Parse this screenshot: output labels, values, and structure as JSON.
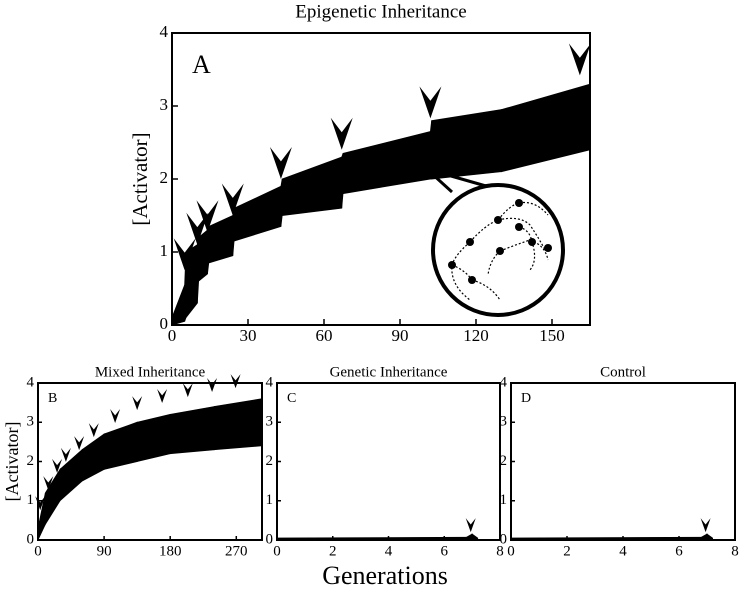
{
  "chart_data": [
    {
      "type": "range",
      "title": "Epigenetic Inheritance",
      "panel_label": "A",
      "ylabel": "[Activator]",
      "color": "#000000",
      "x": [
        0,
        5,
        5.5,
        10,
        10.5,
        14,
        14.5,
        24,
        24.5,
        43,
        43.5,
        67,
        67.5,
        102,
        102.5,
        130,
        165
      ],
      "lower": [
        0,
        0.05,
        0.1,
        0.3,
        0.6,
        0.7,
        0.85,
        0.95,
        1.15,
        1.35,
        1.5,
        1.6,
        1.8,
        2.0,
        2.0,
        2.1,
        2.4
      ],
      "upper": [
        0.1,
        0.55,
        1.0,
        1.1,
        1.2,
        1.3,
        1.35,
        1.5,
        1.6,
        1.9,
        2.0,
        2.3,
        2.35,
        2.65,
        2.8,
        2.95,
        3.3
      ],
      "arrows": {
        "x": [
          5,
          10,
          14,
          24,
          43,
          67,
          102,
          161
        ],
        "y": [
          0.75,
          1.1,
          1.27,
          1.5,
          2.0,
          2.4,
          2.83,
          3.42
        ]
      },
      "xlim": [
        0,
        165
      ],
      "ylim": [
        0,
        4
      ],
      "xticks": [
        0,
        30,
        60,
        90,
        120,
        150
      ],
      "yticks": [
        0,
        1,
        2,
        3,
        4
      ]
    },
    {
      "type": "range",
      "title": "Mixed Inheritance",
      "panel_label": "B",
      "ylabel": "[Activator]",
      "color": "#000000",
      "x": [
        0,
        10,
        30,
        60,
        90,
        135,
        180,
        240,
        305
      ],
      "lower": [
        0,
        0.4,
        1.0,
        1.5,
        1.8,
        2.0,
        2.2,
        2.3,
        2.4
      ],
      "upper": [
        0.3,
        1.2,
        1.8,
        2.3,
        2.7,
        3.0,
        3.2,
        3.4,
        3.6
      ],
      "arrows": {
        "x": [
          3,
          14,
          26,
          38,
          56,
          76,
          105,
          135,
          169,
          204,
          237,
          269
        ],
        "y": [
          0.76,
          1.27,
          1.71,
          1.99,
          2.29,
          2.62,
          2.98,
          3.31,
          3.49,
          3.64,
          3.77,
          3.87
        ]
      },
      "xlim": [
        0,
        305
      ],
      "ylim": [
        0,
        4
      ],
      "xticks": [
        0,
        90,
        180,
        270
      ],
      "yticks": [
        0,
        1,
        2,
        3,
        4
      ]
    },
    {
      "type": "range",
      "title": "Genetic Inheritance",
      "panel_label": "C",
      "color": "#000000",
      "x": [
        0,
        6.8,
        7.0,
        7.2
      ],
      "lower": [
        0,
        0,
        0,
        0
      ],
      "upper": [
        0.05,
        0.07,
        0.15,
        0.05
      ],
      "arrows": {
        "x": [
          6.95
        ],
        "y": [
          0.2
        ]
      },
      "xlim": [
        0,
        8
      ],
      "ylim": [
        0,
        4
      ],
      "xticks": [
        0,
        2,
        4,
        6,
        8
      ],
      "yticks": [
        0,
        1,
        2,
        3,
        4
      ]
    },
    {
      "type": "range",
      "title": "Control",
      "panel_label": "D",
      "color": "#000000",
      "x": [
        0,
        6.8,
        7.0,
        7.2
      ],
      "lower": [
        0,
        0,
        0,
        0
      ],
      "upper": [
        0.05,
        0.07,
        0.15,
        0.05
      ],
      "arrows": {
        "x": [
          6.95
        ],
        "y": [
          0.2
        ]
      },
      "xlim": [
        0,
        8
      ],
      "ylim": [
        0,
        4
      ],
      "xticks": [
        0,
        2,
        4,
        6,
        8
      ],
      "yticks": [
        0,
        1,
        2,
        3,
        4
      ]
    }
  ],
  "shared_xlabel": "Generations"
}
